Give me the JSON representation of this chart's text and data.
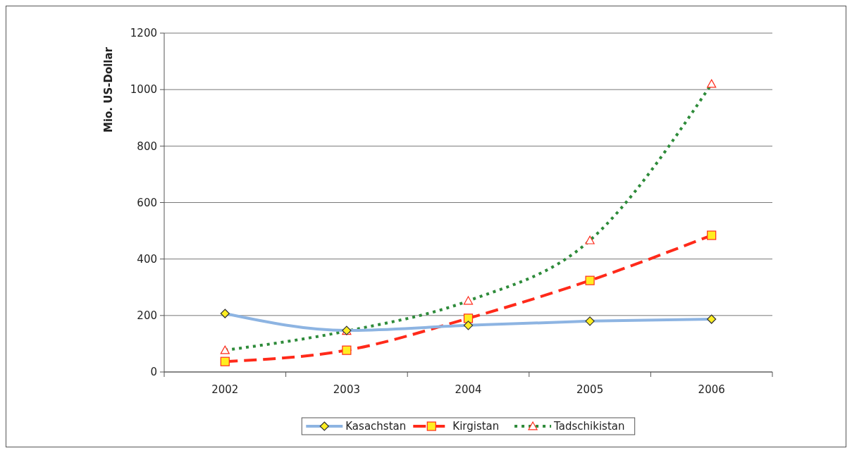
{
  "chart_data": {
    "type": "line",
    "ylabel": "Mio. US-Dollar",
    "categories": [
      "2002",
      "2003",
      "2004",
      "2005",
      "2006"
    ],
    "ylim": [
      0,
      1200
    ],
    "yticks": [
      0,
      200,
      400,
      600,
      800,
      1000,
      1200
    ],
    "grid": "y",
    "legend": "bottom",
    "series": [
      {
        "name": "Kasachstan",
        "color": "#8db4e2",
        "values": [
          207,
          147,
          165,
          180,
          187
        ],
        "marker": "diamond",
        "line_style": "solid"
      },
      {
        "name": "Kirgistan",
        "color": "#ff2a1a",
        "values": [
          37,
          77,
          190,
          324,
          484
        ],
        "marker": "square",
        "line_style": "dashed"
      },
      {
        "name": "Tadschikistan",
        "color": "#2e8b3a",
        "values": [
          77,
          145,
          252,
          466,
          1020
        ],
        "marker": "triangle",
        "line_style": "dotted"
      }
    ]
  }
}
